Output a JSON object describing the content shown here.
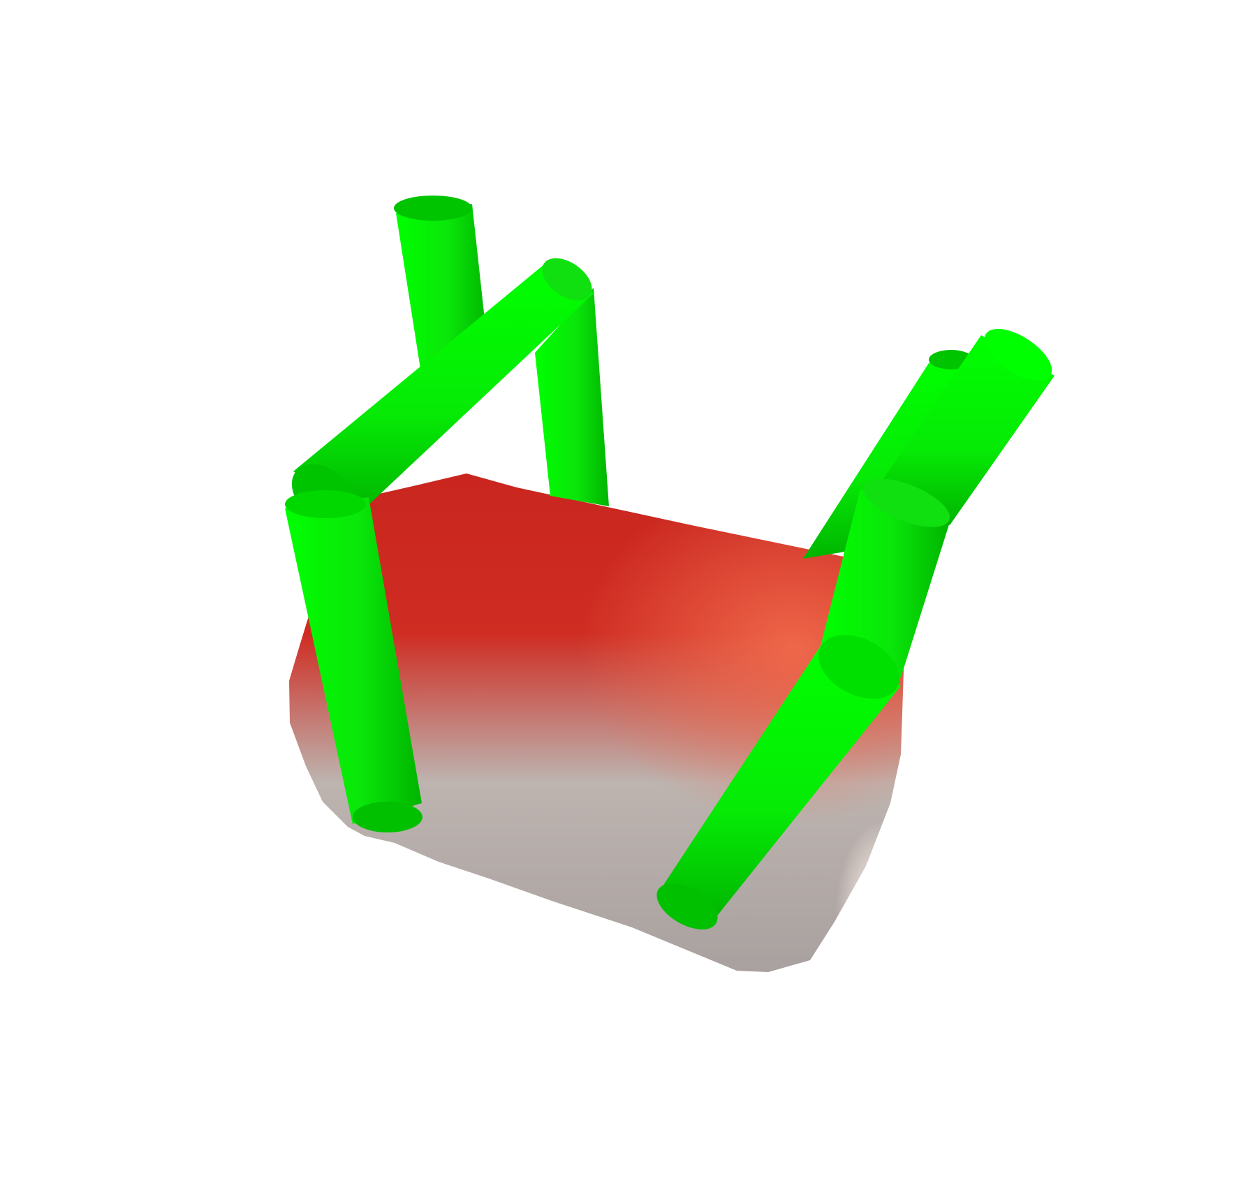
{
  "scene": {
    "background_color": "#ffffff",
    "body": {
      "top_color": "#c9261f",
      "top_highlight_color": "#f06a4c",
      "side_color": "#bdb4b0",
      "bottom_color": "#a9a19f",
      "rim_highlight_color": "#fff2ec"
    },
    "tubes": {
      "color_light": "#00ff00",
      "color_mid": "#12e012",
      "color_dark": "#00b000",
      "cap_color": "#00c400"
    }
  }
}
